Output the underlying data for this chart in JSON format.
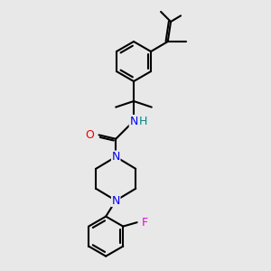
{
  "bg_color": "#e8e8e8",
  "bond_color": "#000000",
  "bond_width": 1.5,
  "atom_colors": {
    "N": "#0000ee",
    "O": "#ee0000",
    "F": "#ee00ee",
    "H": "#008888",
    "C": "#000000"
  },
  "font_size_atom": 8,
  "fig_size": [
    3.0,
    3.0
  ],
  "dpi": 100
}
